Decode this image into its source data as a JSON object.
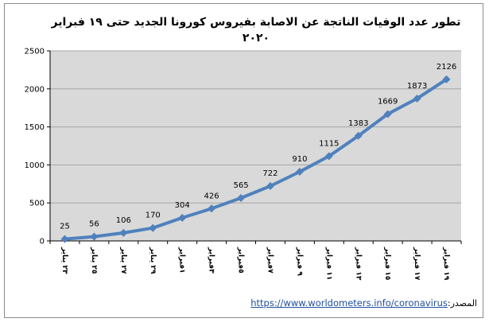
{
  "chart_data": {
    "type": "line",
    "title_lines": [
      "تطور عدد الوفيات الناتجة عن الاصابة بفيروس كورونا الجديد حتى ١٩ فبراير",
      "٢٠٢٠"
    ],
    "categories": [
      "٢٣ يناير",
      "٢٥ يناير",
      "٢٧ يناير",
      "٢٩ يناير",
      "١فبراير",
      "٣فبراير",
      "٥فبراير",
      "٧فبراير",
      "٩ فبراير",
      "١١ فبراير",
      "١٣ فبراير",
      "١٥ فبراير",
      "١٧ فبراير",
      "١٩ فبراير"
    ],
    "values": [
      25,
      56,
      106,
      170,
      304,
      426,
      565,
      722,
      910,
      1115,
      1383,
      1669,
      1873,
      2126
    ],
    "data_labels": [
      "25",
      "56",
      "106",
      "170",
      "304",
      "426",
      "565",
      "722",
      "910",
      "1115",
      "1383",
      "1669",
      "1873",
      "2126"
    ],
    "ylim": [
      0,
      2500
    ],
    "yticks": [
      0,
      500,
      1000,
      1500,
      2000,
      2500
    ],
    "ytick_labels": [
      "0",
      "500",
      "1000",
      "1500",
      "2000",
      "2500"
    ],
    "grid": true,
    "legend": "none",
    "xlabel": "",
    "ylabel": "",
    "colors": {
      "line": "#4f81bd",
      "plot_background": "#d9d9d9",
      "grid": "#a6a6a6"
    }
  },
  "source": {
    "label": "المصدر:",
    "url_text": "https://www.worldometers.info/coronavirus"
  }
}
